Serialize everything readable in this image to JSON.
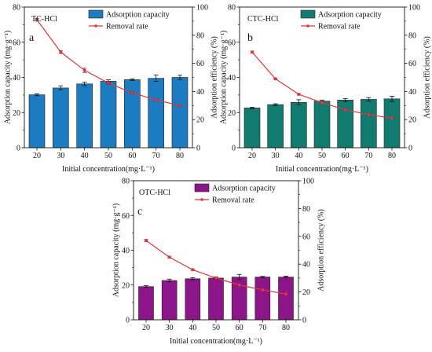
{
  "chart_data": [
    {
      "type": "bar",
      "panel_label": "a",
      "title": "TC-HCl",
      "xlabel": "Initial concentration(mg·L⁻¹)",
      "ylabel": "Adsorption capacity (mg·g⁻¹)",
      "y2label": "Adsorption efficiency (%)",
      "categories": [
        "20",
        "30",
        "40",
        "50",
        "60",
        "70",
        "80"
      ],
      "ylim": [
        0,
        80
      ],
      "yticks": [
        0,
        20,
        40,
        60,
        80
      ],
      "y2lim": [
        0,
        100
      ],
      "y2ticks": [
        0,
        20,
        40,
        60,
        80,
        100
      ],
      "legend": "top-center",
      "grid": false,
      "series": [
        {
          "name": "Adsorption capacity",
          "kind": "bar",
          "axis": "left",
          "color": "#1b7cc1",
          "values": [
            30.1,
            34.0,
            36.3,
            37.8,
            38.7,
            39.5,
            40.0
          ],
          "errors": [
            0.5,
            1.2,
            1.0,
            0.8,
            0.4,
            1.8,
            1.2
          ]
        },
        {
          "name": "Removal rate",
          "kind": "line",
          "axis": "right",
          "color": "#e8333a",
          "values": [
            91.0,
            68.0,
            55.0,
            46.0,
            39.0,
            34.0,
            30.0
          ],
          "errors": [
            1.0,
            1.0,
            1.5,
            1.0,
            0.8,
            0.8,
            0.6
          ]
        }
      ]
    },
    {
      "type": "bar",
      "panel_label": "b",
      "title": "CTC-HCl",
      "xlabel": "Initial concentration(mg·L⁻¹)",
      "ylabel": "Adsorption capacity (mg·g⁻¹)",
      "y2label": "Adsorption efficiency (%)",
      "categories": [
        "20",
        "30",
        "40",
        "50",
        "60",
        "70",
        "80"
      ],
      "ylim": [
        0,
        80
      ],
      "yticks": [
        0,
        20,
        40,
        60,
        80
      ],
      "y2lim": [
        0,
        100
      ],
      "y2ticks": [
        0,
        20,
        40,
        60,
        80,
        100
      ],
      "legend": "top-right",
      "grid": false,
      "series": [
        {
          "name": "Adsorption capacity",
          "kind": "bar",
          "axis": "left",
          "color": "#117b70",
          "values": [
            22.6,
            24.5,
            25.8,
            26.5,
            27.1,
            27.5,
            27.8
          ],
          "errors": [
            0.4,
            0.5,
            1.5,
            0.5,
            0.8,
            1.0,
            1.5
          ]
        },
        {
          "name": "Removal rate",
          "kind": "line",
          "axis": "right",
          "color": "#e8333a",
          "values": [
            68.0,
            49.0,
            38.0,
            32.0,
            27.0,
            23.5,
            21.0
          ],
          "errors": [
            0.8,
            0.6,
            0.6,
            0.8,
            0.6,
            0.5,
            0.5
          ]
        }
      ]
    },
    {
      "type": "bar",
      "panel_label": "c",
      "title": "OTC-HCl",
      "xlabel": "Initial concentration(mg·L⁻¹)",
      "ylabel": "Adsorption capacity (mg·g⁻¹)",
      "y2label": "Adsorption efficiency (%)",
      "categories": [
        "20",
        "30",
        "40",
        "50",
        "60",
        "70",
        "80"
      ],
      "ylim": [
        0,
        80
      ],
      "yticks": [
        0,
        20,
        40,
        60,
        80
      ],
      "y2lim": [
        0,
        100
      ],
      "y2ticks": [
        0,
        20,
        40,
        60,
        80,
        100
      ],
      "legend": "top-center",
      "grid": false,
      "series": [
        {
          "name": "Adsorption capacity",
          "kind": "bar",
          "axis": "left",
          "color": "#8c1689",
          "values": [
            19.1,
            22.6,
            23.6,
            24.0,
            24.6,
            24.6,
            24.6
          ],
          "errors": [
            0.5,
            0.8,
            0.6,
            0.7,
            1.5,
            0.4,
            0.5
          ]
        },
        {
          "name": "Removal rate",
          "kind": "line",
          "axis": "right",
          "color": "#e8333a",
          "values": [
            57.0,
            45.0,
            36.0,
            30.0,
            25.0,
            21.5,
            18.5
          ],
          "errors": [
            0.8,
            0.7,
            0.6,
            0.6,
            0.5,
            0.5,
            0.5
          ]
        }
      ]
    }
  ]
}
